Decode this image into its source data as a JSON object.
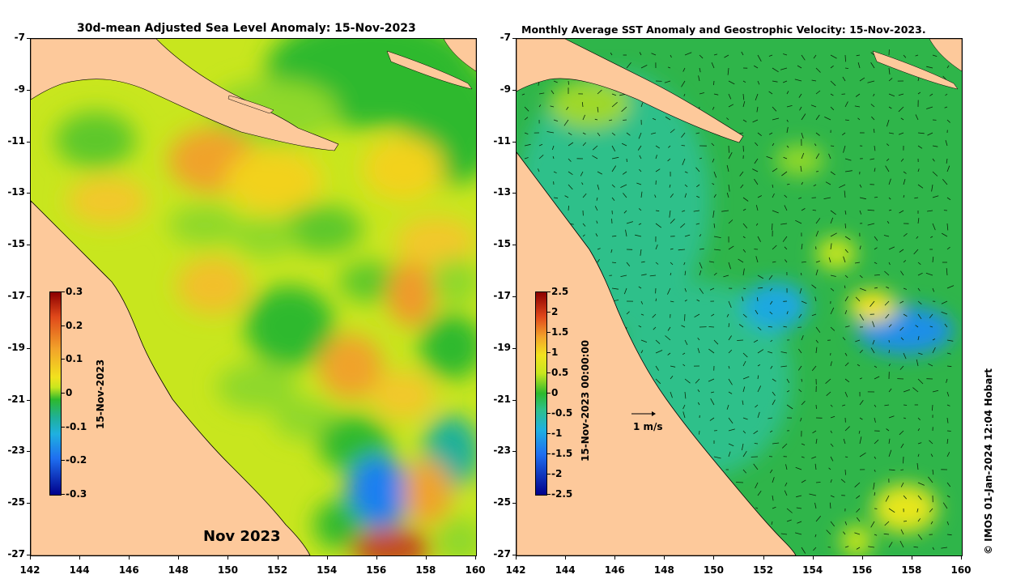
{
  "left_map": {
    "title": "30d-mean Adjusted Sea Level Anomaly: 15-Nov-2023",
    "month_label": "Nov 2023",
    "colorbar": {
      "title": "15-Nov-2023",
      "ticks": [
        "0.3",
        "0.2",
        "0.1",
        "0",
        "-0.1",
        "-0.2",
        "-0.3"
      ],
      "range": [
        -0.3,
        0.3
      ]
    }
  },
  "right_map": {
    "title": "Monthly Average SST Anomaly  and Geostrophic Velocity: 15-Nov-2023.",
    "velocity_scale_label": "1 m/s",
    "colorbar": {
      "title": "15-Nov-2023 00:00:00",
      "ticks": [
        "2.5",
        "2",
        "1.5",
        "1",
        "0.5",
        "0",
        "-0.5",
        "-1",
        "-1.5",
        "-2",
        "-2.5"
      ],
      "range": [
        -2.5,
        2.5
      ]
    }
  },
  "axes": {
    "y_ticks": [
      "-7",
      "-9",
      "-11",
      "-13",
      "-15",
      "-17",
      "-19",
      "-21",
      "-23",
      "-25",
      "-27"
    ],
    "x_ticks": [
      "142",
      "144",
      "146",
      "148",
      "150",
      "152",
      "154",
      "156",
      "158",
      "160"
    ],
    "lon_range": [
      142,
      160
    ],
    "lat_range": [
      -27,
      -7
    ]
  },
  "credit": "© IMOS 01-Jan-2024 12:04 Hobart",
  "colors": {
    "land": "#fdc99b",
    "sla_high": "#8b0000",
    "sla_zero": "#2db92d",
    "sla_low": "#00008b",
    "sst_ocean": "#2fb54a"
  }
}
